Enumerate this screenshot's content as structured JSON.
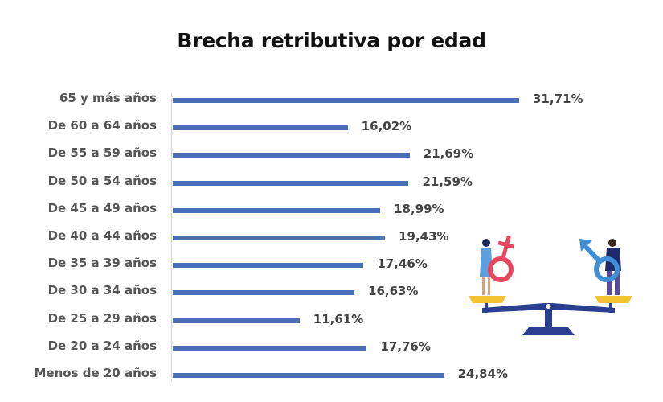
{
  "chart_data": {
    "type": "bar",
    "orientation": "horizontal",
    "title": "Brecha retributiva por edad",
    "xlabel": "",
    "ylabel": "",
    "grid": false,
    "legend": null,
    "categories": [
      "65 y más años",
      "De 60 a 64 años",
      "De 55 a 59 años",
      "De 50 a 54 años",
      "De 45 a 49 años",
      "De 40 a 44 años",
      "De 35 a 39 años",
      "De 30 a 34 años",
      "De 25 a 29 años",
      "De 20 a 24 años",
      "Menos de 20 años"
    ],
    "values": [
      31.71,
      16.02,
      21.69,
      21.59,
      18.99,
      19.43,
      17.46,
      16.63,
      11.61,
      17.76,
      24.84
    ],
    "value_labels": [
      "31,71%",
      "16,02%",
      "21,69%",
      "21,59%",
      "18,99%",
      "19,43%",
      "17,46%",
      "16,63%",
      "11,61%",
      "17,76%",
      "24,84%"
    ],
    "xlim": [
      0,
      32
    ],
    "bar_color": "#4a6fb5"
  },
  "illustration": {
    "name": "gender-scale-illustration",
    "female_color": "#e8475f",
    "male_color": "#3f8fd8",
    "scale_color": "#2a3f8f",
    "pan_color": "#f2c230"
  }
}
